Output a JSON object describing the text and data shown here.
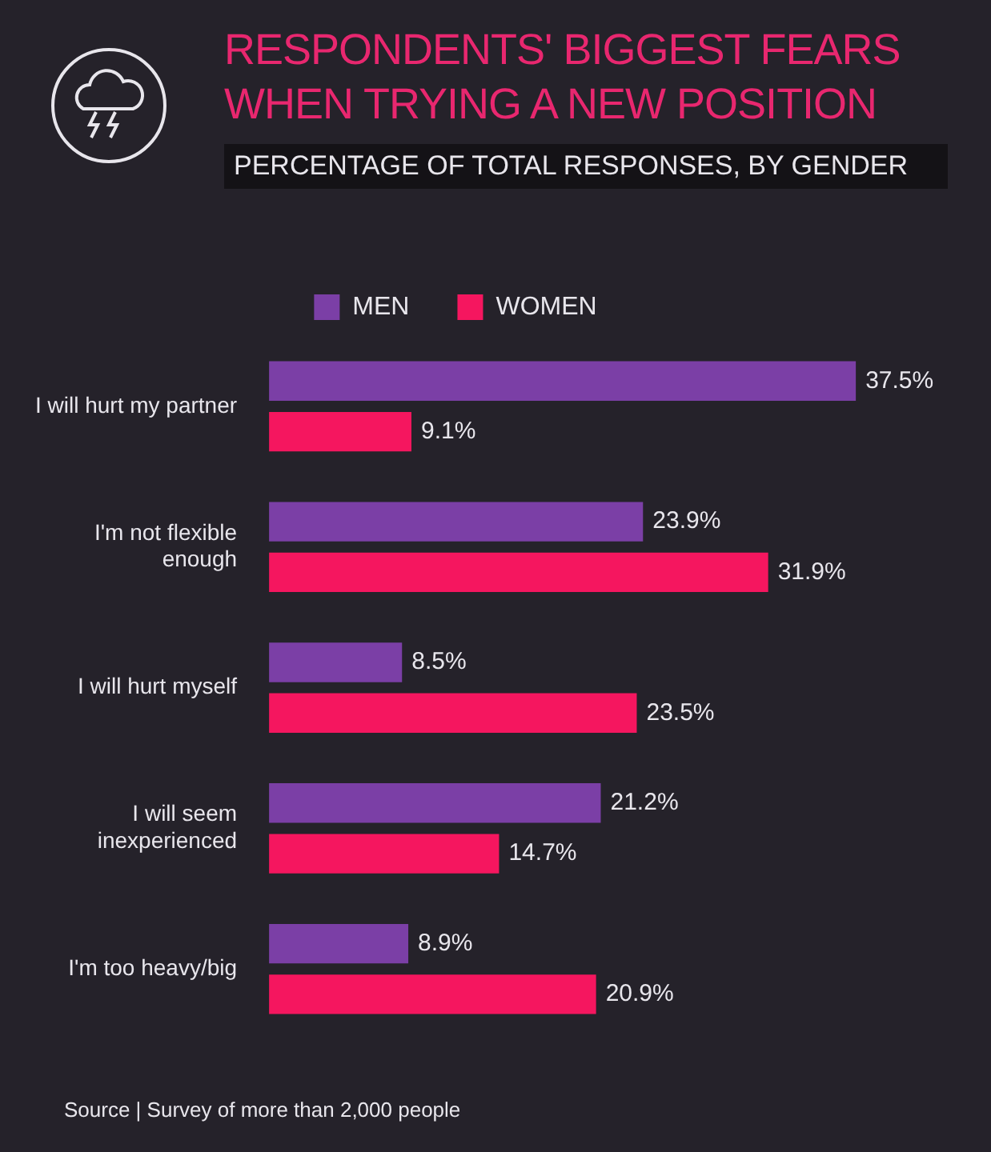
{
  "chart_data": {
    "type": "bar",
    "orientation": "horizontal",
    "title": "RESPONDENTS' BIGGEST FEARS WHEN TRYING A NEW POSITION",
    "subtitle": "PERCENTAGE OF TOTAL RESPONSES, BY GENDER",
    "categories": [
      "I will hurt my partner",
      "I'm not flexible enough",
      "I will hurt myself",
      "I will seem inexperienced",
      "I'm too heavy/big"
    ],
    "series": [
      {
        "name": "MEN",
        "color": "#7b3fa6",
        "values": [
          37.5,
          23.9,
          8.5,
          21.2,
          8.9
        ],
        "value_labels": [
          "37.5%",
          "23.9%",
          "8.5%",
          "21.2%",
          "8.9%"
        ]
      },
      {
        "name": "WOMEN",
        "color": "#f5165f",
        "values": [
          9.1,
          31.9,
          23.5,
          14.7,
          20.9
        ],
        "value_labels": [
          "9.1%",
          "31.9%",
          "23.5%",
          "14.7%",
          "20.9%"
        ]
      }
    ],
    "legend": "top left",
    "annotations": [
      "Source | Survey of more than 2,000 people"
    ]
  }
}
